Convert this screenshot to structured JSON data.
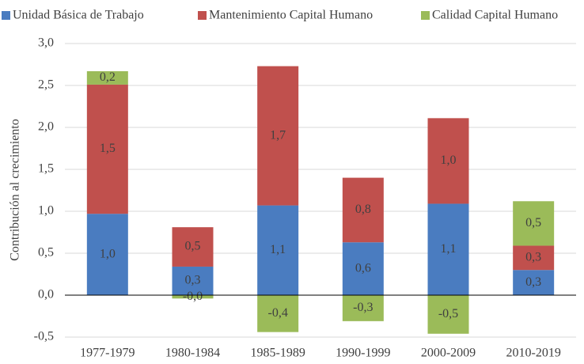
{
  "chart_data": {
    "type": "stacked-bar",
    "y_label": "Contribución al crecimiento",
    "categories": [
      "1977-1979",
      "1980-1984",
      "1985-1989",
      "1990-1999",
      "2000-2009",
      "2010-2019"
    ],
    "series": [
      {
        "name": "Unidad Básica de Trabajo",
        "color": "#4a7cc0",
        "values": [
          0.97,
          0.34,
          1.07,
          0.63,
          1.09,
          0.3
        ],
        "value_labels": [
          "1,0",
          "0,3",
          "1,1",
          "0,6",
          "1,1",
          "0,3"
        ]
      },
      {
        "name": "Mantenimiento Capital Humano",
        "color": "#c0504d",
        "values": [
          1.54,
          0.47,
          1.66,
          0.77,
          1.02,
          0.29
        ],
        "value_labels": [
          "1,5",
          "0,5",
          "1,7",
          "0,8",
          "1,0",
          "0,3"
        ]
      },
      {
        "name": "Calidad Capital Humano",
        "color": "#9bbb59",
        "values": [
          0.16,
          -0.04,
          -0.44,
          -0.31,
          -0.46,
          0.53
        ],
        "value_labels": [
          "0,2",
          "-0,0",
          "-0,4",
          "-0,3",
          "-0,5",
          "0,5"
        ]
      }
    ],
    "ylim": [
      -0.5,
      3.0
    ],
    "yticks": [
      {
        "value": -0.5,
        "label": "-0,5"
      },
      {
        "value": 0,
        "label": "0,0"
      },
      {
        "value": 0.5,
        "label": "0,5"
      },
      {
        "value": 1,
        "label": "1,0"
      },
      {
        "value": 1.5,
        "label": "1,5"
      },
      {
        "value": 2,
        "label": "2,0"
      },
      {
        "value": 2.5,
        "label": "2,5"
      },
      {
        "value": 3,
        "label": "3,0"
      }
    ],
    "grid": true
  }
}
